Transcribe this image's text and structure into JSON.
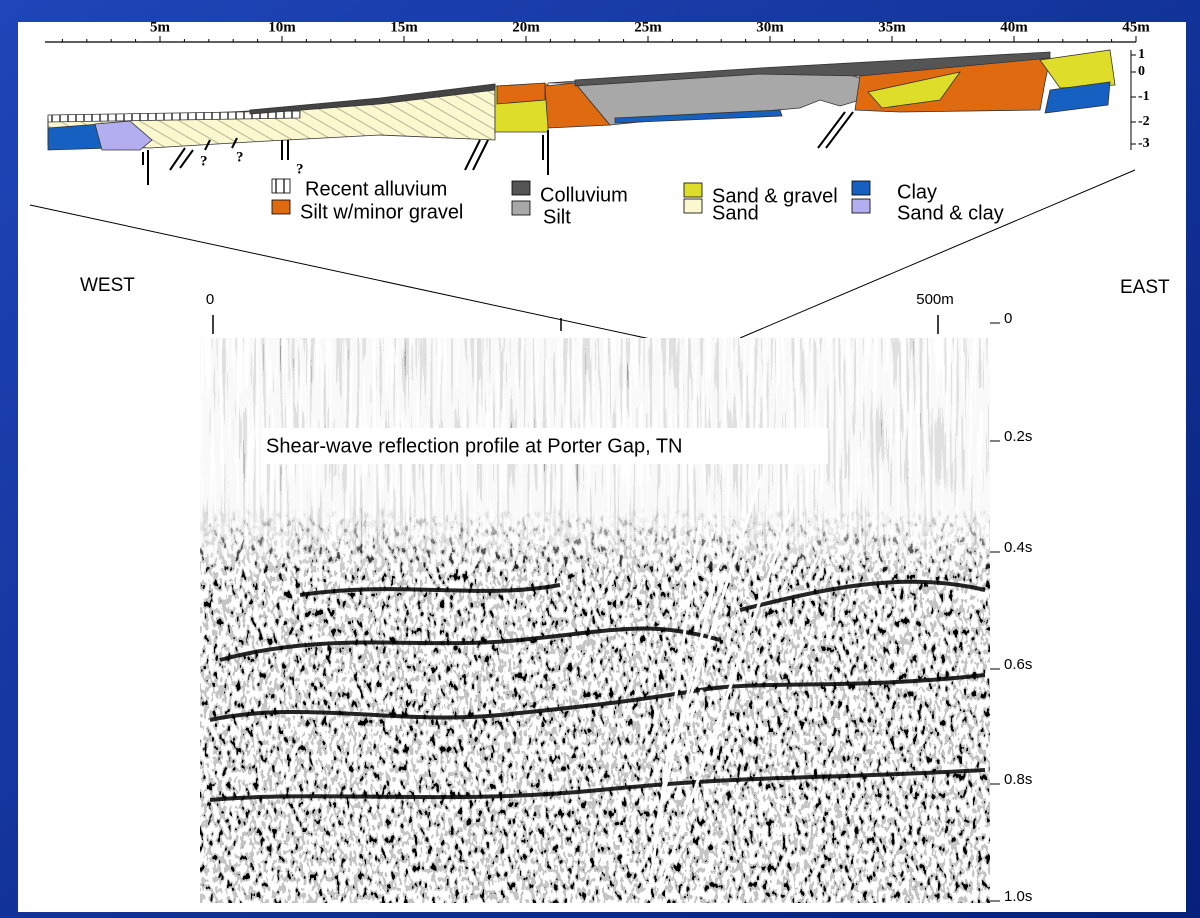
{
  "trench_log": {
    "scale_labels": [
      "5m",
      "10m",
      "15m",
      "20m",
      "25m",
      "30m",
      "35m",
      "40m",
      "45m"
    ],
    "depth_labels": [
      "1",
      "0",
      "-1",
      "-2",
      "-3"
    ],
    "question_marks": [
      "?",
      "?",
      "?"
    ],
    "legend": [
      "Recent alluvium",
      "Silt w/minor gravel",
      "Colluvium",
      "Silt",
      "Sand & gravel",
      "Sand",
      "Clay",
      "Sand & clay"
    ]
  },
  "seismic_profile": {
    "west_label": "WEST",
    "east_label": "EAST",
    "distance_labels": [
      "0",
      "500m"
    ],
    "time_labels": [
      "0",
      "0.2s",
      "0.4s",
      "0.6s",
      "0.8s",
      "1.0s"
    ],
    "caption": "Shear-wave reflection profile at Porter Gap, TN"
  }
}
